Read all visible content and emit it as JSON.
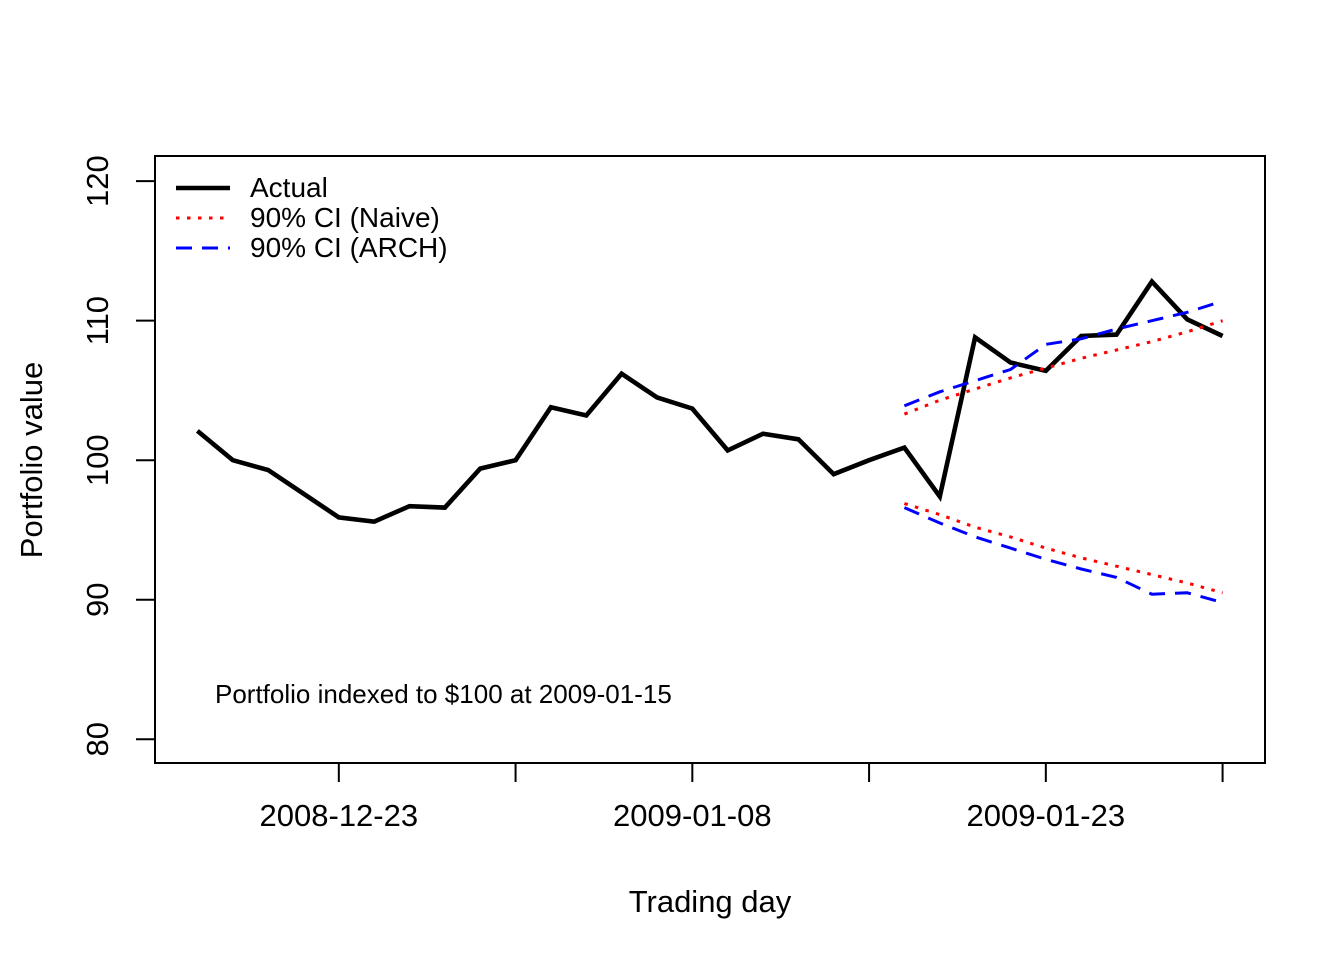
{
  "chart_data": {
    "type": "line",
    "title": "",
    "xlabel": "Trading day",
    "ylabel": "Portfolio value",
    "annotation": "Portfolio indexed to $100 at 2009-01-15",
    "grid": false,
    "xlim": [
      -1.2,
      30.2
    ],
    "ylim": [
      78.3,
      121.8
    ],
    "x_ticks": {
      "positions": [
        4,
        9,
        14,
        19,
        24,
        29
      ],
      "labels": [
        "2008-12-23",
        "",
        "2009-01-08",
        "",
        "2009-01-23",
        ""
      ]
    },
    "y_ticks": [
      80,
      90,
      100,
      110,
      120
    ],
    "legend": {
      "position": "top-left",
      "entries": [
        {
          "label": "Actual",
          "color": "#000000",
          "dash": "none",
          "width": 4.6
        },
        {
          "label": "90% CI (Naive)",
          "color": "#FF0000",
          "dash": "3.5 7.5",
          "width": 3
        },
        {
          "label": "90% CI (ARCH)",
          "color": "#0000FF",
          "dash": "16 10",
          "width": 3
        }
      ]
    },
    "series": [
      {
        "id": "actual",
        "name": "Actual",
        "color": "#000000",
        "dash": "none",
        "width": 4.6,
        "x_start": 0,
        "values": [
          102.1,
          100.0,
          99.3,
          97.6,
          95.9,
          95.6,
          96.7,
          96.6,
          99.4,
          100.0,
          103.8,
          103.2,
          106.2,
          104.5,
          103.7,
          100.7,
          101.9,
          101.5,
          99.0,
          100.0,
          100.9,
          97.4,
          108.8,
          107.0,
          106.4,
          108.9,
          109.0,
          112.8,
          110.1,
          108.9
        ]
      },
      {
        "id": "naive-upper",
        "name": "90% CI (Naive) upper",
        "color": "#FF0000",
        "dash": "3.5 7.5",
        "width": 3,
        "x_start": 20,
        "values": [
          103.3,
          104.3,
          105.1,
          105.9,
          106.6,
          107.3,
          107.9,
          108.5,
          109.2,
          110.0
        ]
      },
      {
        "id": "naive-lower",
        "name": "90% CI (Naive) lower",
        "color": "#FF0000",
        "dash": "3.5 7.5",
        "width": 3,
        "x_start": 20,
        "values": [
          96.9,
          96.1,
          95.2,
          94.5,
          93.7,
          93.0,
          92.4,
          91.8,
          91.2,
          90.5
        ]
      },
      {
        "id": "arch-upper",
        "name": "90% CI (ARCH) upper",
        "color": "#0000FF",
        "dash": "16 10",
        "width": 3,
        "x_start": 20,
        "values": [
          103.9,
          104.9,
          105.7,
          106.5,
          108.3,
          108.7,
          109.4,
          110.0,
          110.6,
          111.4
        ]
      },
      {
        "id": "arch-lower",
        "name": "90% CI (ARCH) lower",
        "color": "#0000FF",
        "dash": "16 10",
        "width": 3,
        "x_start": 20,
        "values": [
          96.6,
          95.5,
          94.5,
          93.7,
          92.9,
          92.2,
          91.6,
          90.4,
          90.5,
          89.8
        ]
      }
    ]
  }
}
